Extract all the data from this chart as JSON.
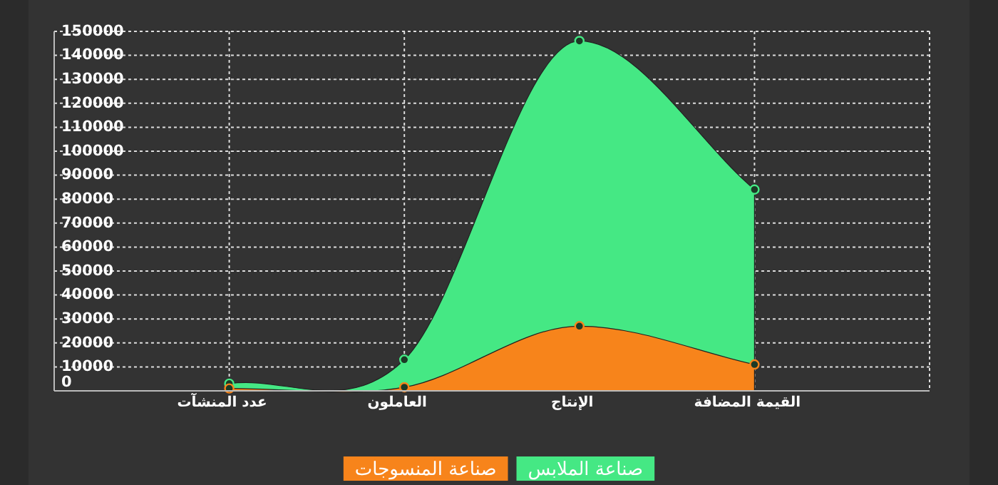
{
  "chart_data": {
    "type": "area",
    "categories": [
      "عدد المنشآت",
      "العاملون",
      "الإنتاج",
      "القيمة المضافة"
    ],
    "series": [
      {
        "name": "صناعة الملابس",
        "color": "#45e884",
        "values": [
          3000,
          13000,
          146000,
          84000
        ]
      },
      {
        "name": "صناعة المنسوجات",
        "color": "#f7841b",
        "values": [
          1000,
          1500,
          27000,
          11000
        ]
      }
    ],
    "ylim": [
      0,
      150000
    ],
    "yticks": [
      0,
      10000,
      20000,
      30000,
      40000,
      50000,
      60000,
      70000,
      80000,
      90000,
      100000,
      110000,
      120000,
      130000,
      140000,
      150000
    ],
    "grid": true,
    "legend": "bottom",
    "marker": "circle"
  }
}
